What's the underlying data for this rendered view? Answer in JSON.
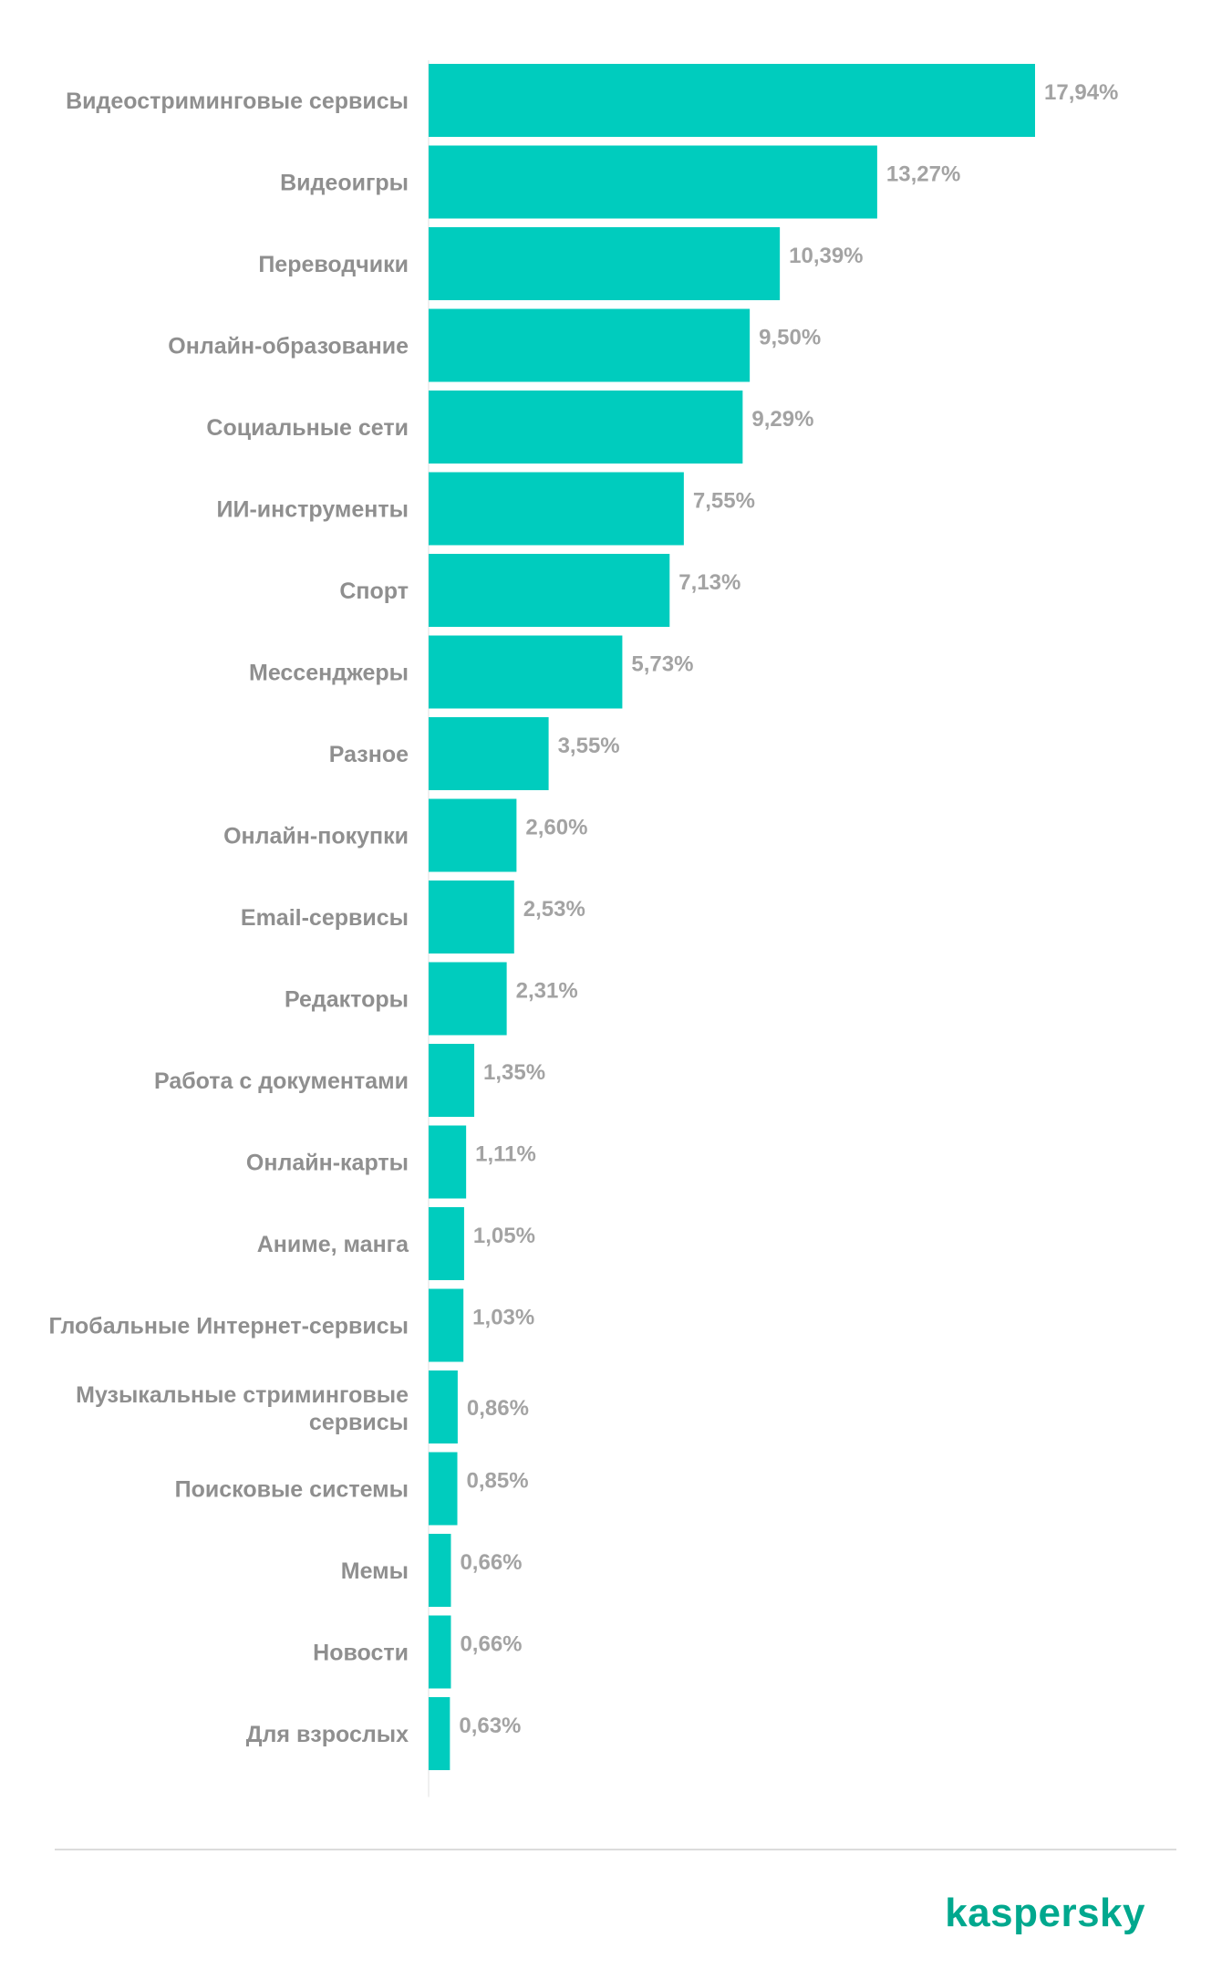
{
  "chart_data": {
    "type": "bar",
    "orientation": "horizontal",
    "categories": [
      "Видеостриминговые сервисы",
      "Видеоигры",
      "Переводчики",
      "Онлайн-образование",
      "Социальные сети",
      "ИИ-инструменты",
      "Спорт",
      "Мессенджеры",
      "Разное",
      "Онлайн-покупки",
      "Email-сервисы",
      "Редакторы",
      "Работа с документами",
      "Онлайн-карты",
      "Аниме, манга",
      "Глобальные Интернет-сервисы",
      "Музыкальные стриминговые сервисы",
      "Поисковые системы",
      "Мемы",
      "Новости",
      "Для взрослых"
    ],
    "values": [
      17.94,
      13.27,
      10.39,
      9.5,
      9.29,
      7.55,
      7.13,
      5.73,
      3.55,
      2.6,
      2.53,
      2.31,
      1.35,
      1.11,
      1.05,
      1.03,
      0.86,
      0.85,
      0.66,
      0.66,
      0.63
    ],
    "value_labels": [
      "17,94%",
      "13,27%",
      "10,39%",
      "9,50%",
      "9,29%",
      "7,55%",
      "7,13%",
      "5,73%",
      "3,55%",
      "2,60%",
      "2,53%",
      "2,31%",
      "1,35%",
      "1,11%",
      "1,05%",
      "1,03%",
      "0,86%",
      "0,85%",
      "0,66%",
      "0,66%",
      "0,63%"
    ],
    "title": "",
    "xlabel": "",
    "ylabel": "",
    "xlim": [
      0,
      17.94
    ],
    "grid": false,
    "legend": "none",
    "bar_color": "#00ccbe"
  },
  "brand": {
    "logo_text": "kaspersky",
    "logo_color": "#00a88e"
  },
  "colors": {
    "category_text": "#8f8f8f",
    "value_text": "#a3a3a3",
    "axis_line": "#e2e2e2",
    "footer_rule": "#dcdcdc"
  }
}
